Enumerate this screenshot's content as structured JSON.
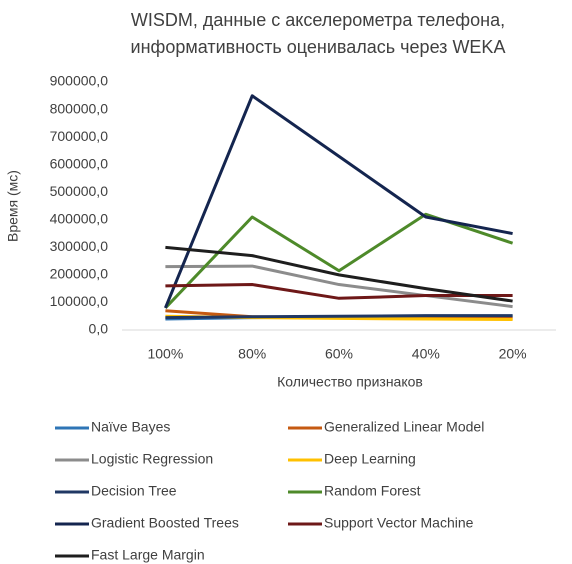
{
  "chart_data": {
    "type": "line",
    "title": [
      "WISDM, данные с акселерометра телефона,",
      "информативность оценивалась через WEKA"
    ],
    "y_label": "Время (мс)",
    "x_label": "Количество признаков",
    "categories": [
      "100%",
      "80%",
      "60%",
      "40%",
      "20%"
    ],
    "ylim": [
      0,
      900000
    ],
    "yticks": [
      {
        "value": 0,
        "label": "0,0"
      },
      {
        "value": 100000,
        "label": "100000,0"
      },
      {
        "value": 200000,
        "label": "200000,0"
      },
      {
        "value": 300000,
        "label": "300000,0"
      },
      {
        "value": 400000,
        "label": "400000,0"
      },
      {
        "value": 500000,
        "label": "500000,0"
      },
      {
        "value": 600000,
        "label": "600000,0"
      },
      {
        "value": 700000,
        "label": "700000,0"
      },
      {
        "value": 800000,
        "label": "800000,0"
      },
      {
        "value": 900000,
        "label": "900000,0"
      }
    ],
    "grid": false,
    "legend": "bottom",
    "series": [
      {
        "name": "Naïve Bayes",
        "color": "#2e75b6",
        "values": [
          40000,
          45000,
          48000,
          50000,
          50000
        ]
      },
      {
        "name": "Generalized Linear Model",
        "color": "#c55a11",
        "values": [
          70000,
          48000,
          45000,
          42000,
          42000
        ]
      },
      {
        "name": "Logistic Regression",
        "color": "#8c8c8c",
        "values": [
          230000,
          232000,
          165000,
          125000,
          85000
        ]
      },
      {
        "name": "Deep Learning",
        "color": "#ffc000",
        "values": [
          50000,
          45000,
          42000,
          40000,
          38000
        ]
      },
      {
        "name": "Decision Tree",
        "color": "#203864",
        "values": [
          45000,
          48000,
          50000,
          52000,
          52000
        ]
      },
      {
        "name": "Random Forest",
        "color": "#4e8a2a",
        "values": [
          80000,
          410000,
          215000,
          420000,
          315000
        ]
      },
      {
        "name": "Gradient Boosted Trees",
        "color": "#14254f",
        "values": [
          80000,
          850000,
          630000,
          410000,
          350000
        ]
      },
      {
        "name": "Support Vector Machine",
        "color": "#6e1818",
        "values": [
          160000,
          165000,
          115000,
          125000,
          125000
        ]
      },
      {
        "name": "Fast Large Margin",
        "color": "#1e1e1e",
        "values": [
          300000,
          270000,
          200000,
          150000,
          105000
        ]
      }
    ]
  }
}
